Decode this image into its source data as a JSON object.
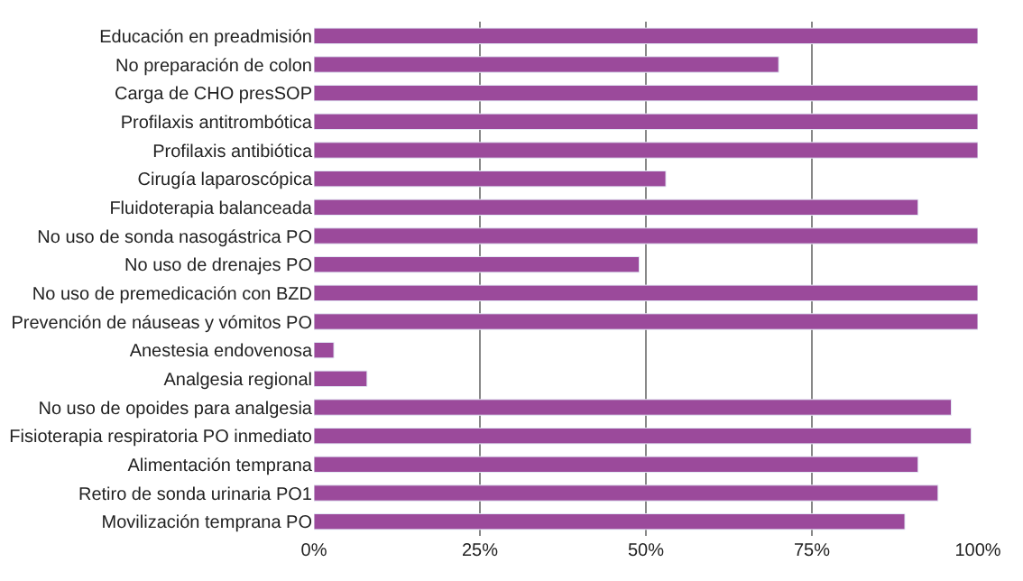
{
  "chart_data": {
    "type": "bar",
    "orientation": "horizontal",
    "categories": [
      "Educación en preadmisión",
      "No preparación de colon",
      "Carga de CHO presSOP",
      "Profilaxis antitrombótica",
      "Profilaxis antibiótica",
      "Cirugía laparoscópica",
      "Fluidoterapia balanceada",
      "No uso de sonda nasogástrica PO",
      "No uso de drenajes PO",
      "No uso de premedicación con BZD",
      "Prevención de náuseas y vómitos PO",
      "Anestesia endovenosa",
      "Analgesia regional",
      "No uso de opoides para analgesia",
      "Fisioterapia respiratoria PO inmediato",
      "Alimentación temprana",
      "Retiro de sonda urinaria PO1",
      "Movilización temprana PO"
    ],
    "series": [
      {
        "color": "#9b4a9b",
        "values": [
          100,
          70,
          100,
          100,
          100,
          53,
          91,
          100,
          49,
          100,
          100,
          3,
          8,
          96,
          99,
          91,
          94,
          89
        ]
      }
    ],
    "xlim": [
      0,
      100
    ],
    "xticks": [
      {
        "value": 0,
        "label": "0%"
      },
      {
        "value": 25,
        "label": "25%"
      },
      {
        "value": 50,
        "label": "50%"
      },
      {
        "value": 75,
        "label": "75%"
      },
      {
        "value": 100,
        "label": "100%"
      }
    ],
    "grid": "x",
    "legend": false
  }
}
